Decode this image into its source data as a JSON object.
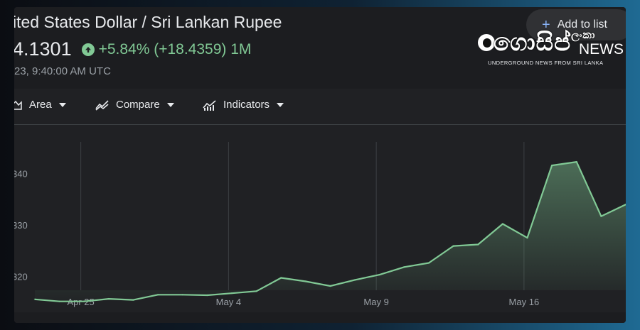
{
  "header": {
    "pair_title": "ited States Dollar / Sri Lankan Rupee",
    "price": "4.1301",
    "change": "+5.84% (+18.4359) 1M",
    "timestamp": "23, 9:40:00 AM UTC",
    "add_to_list_label": "Add to list"
  },
  "watermark": {
    "brand_sinhala": "ගොසිප්",
    "brand_small": "ලංකා",
    "news": "NEWS",
    "tagline": "UNDERGROUND NEWS FROM SRI LANKA"
  },
  "toolbar": {
    "items": [
      {
        "label": "Area",
        "icon": "area-chart-icon"
      },
      {
        "label": "Compare",
        "icon": "compare-icon"
      },
      {
        "label": "Indicators",
        "icon": "indicators-icon"
      }
    ]
  },
  "colors": {
    "line": "#81c995",
    "text": "#e8eaed",
    "muted": "#9aa0a6",
    "grid": "#3c4043",
    "panel": "#202124"
  },
  "chart_data": {
    "type": "area",
    "y_tick_labels": [
      "340",
      "330",
      "320"
    ],
    "y_ticks": [
      340,
      330,
      320
    ],
    "x_tick_labels": [
      "Apr 25",
      "May 4",
      "May 9",
      "May 16"
    ],
    "ylim": [
      315.2,
      349.5
    ],
    "series": [
      {
        "values": [
          315.5,
          315.1,
          315.1,
          315.6,
          315.4,
          316.4,
          316.4,
          316.3,
          316.7,
          317.1,
          319.7,
          319.0,
          318.1,
          319.3,
          320.3,
          321.8,
          322.6,
          325.9,
          326.2,
          330.2,
          327.5,
          341.6,
          342.3,
          331.7,
          334.0
        ]
      }
    ],
    "grid": "vertical",
    "legend": "none"
  }
}
